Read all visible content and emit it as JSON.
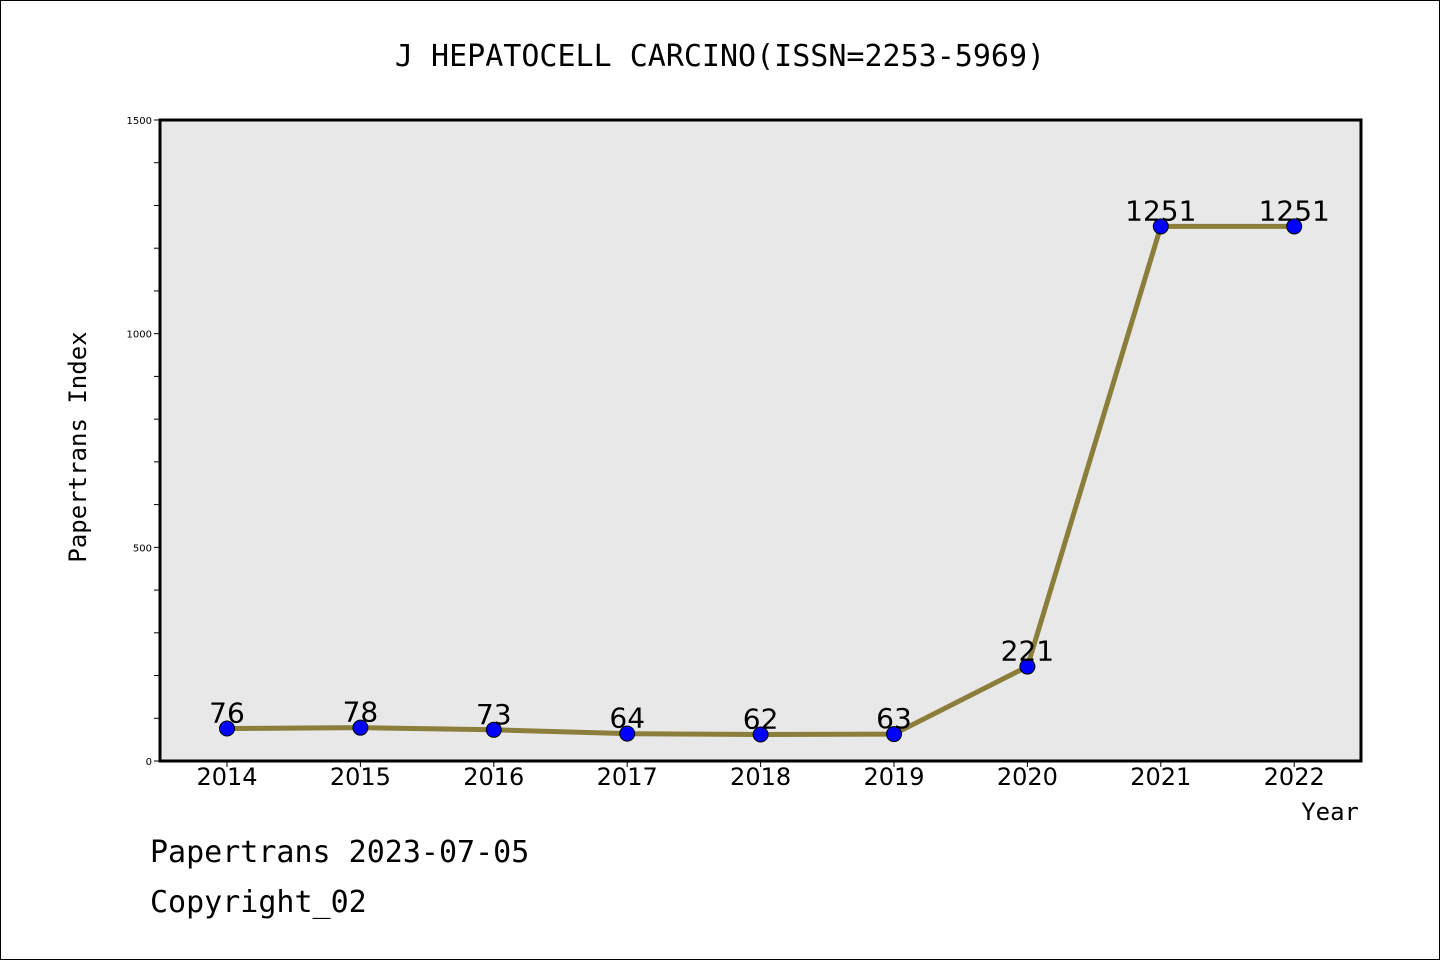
{
  "chart_data": {
    "type": "line",
    "title": "J HEPATOCELL CARCINO(ISSN=2253-5969)",
    "xlabel": "Year",
    "ylabel": "Papertrans Index",
    "categories": [
      "2014",
      "2015",
      "2016",
      "2017",
      "2018",
      "2019",
      "2020",
      "2021",
      "2022"
    ],
    "series": [
      {
        "values": [
          76,
          78,
          73,
          64,
          62,
          63,
          221,
          1251,
          1251
        ]
      }
    ],
    "value_labels": [
      "76",
      "78",
      "73",
      "64",
      "62",
      "63",
      "221",
      "1251",
      "1251"
    ],
    "ylim": [
      0,
      1500
    ],
    "yticks": [
      0,
      500,
      1000,
      1500
    ],
    "ytick_labels": [
      "0",
      "500",
      "1000",
      "1500"
    ],
    "grid": false,
    "colors": {
      "line": "#8b7d3a",
      "marker": "#0000ff",
      "plot_background": "#e8e8e8"
    }
  },
  "footer": {
    "date_line": "Papertrans 2023-07-05",
    "copyright_line": "Copyright_02"
  }
}
